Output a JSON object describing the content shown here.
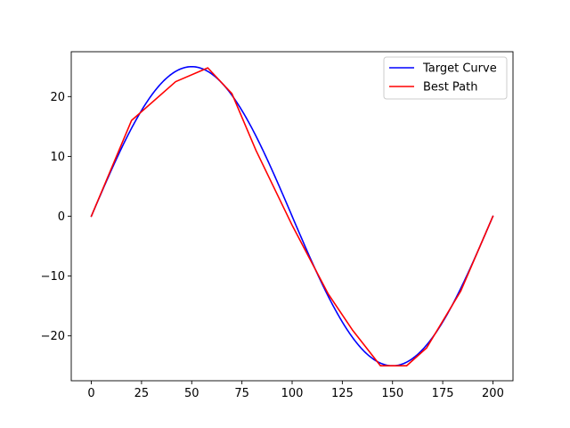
{
  "chart_data": {
    "type": "line",
    "title": "",
    "xlabel": "",
    "ylabel": "",
    "xlim": [
      -10,
      210
    ],
    "ylim": [
      -27.5,
      27.5
    ],
    "xticks": [
      0,
      25,
      50,
      75,
      100,
      125,
      150,
      175,
      200
    ],
    "yticks": [
      -20,
      -10,
      0,
      10,
      20
    ],
    "xtick_labels": [
      "0",
      "25",
      "50",
      "75",
      "100",
      "125",
      "150",
      "175",
      "200"
    ],
    "ytick_labels": [
      "−20",
      "−10",
      "0",
      "10",
      "20"
    ],
    "grid": false,
    "legend_position": "top-right",
    "series": [
      {
        "name": "Target Curve",
        "color": "#0000ff",
        "function": "25*sin(pi*x/100)",
        "x_range": [
          0,
          200
        ]
      },
      {
        "name": "Best Path",
        "color": "#ff0000",
        "points": [
          [
            0,
            0
          ],
          [
            20,
            16
          ],
          [
            42,
            22.5
          ],
          [
            58,
            24.8
          ],
          [
            70,
            20.5
          ],
          [
            82,
            11
          ],
          [
            100,
            -1.5
          ],
          [
            118,
            -13
          ],
          [
            130,
            -19
          ],
          [
            144,
            -25
          ],
          [
            150,
            -25
          ],
          [
            157,
            -25
          ],
          [
            167,
            -22
          ],
          [
            184,
            -12.5
          ],
          [
            200,
            0
          ]
        ]
      }
    ]
  }
}
